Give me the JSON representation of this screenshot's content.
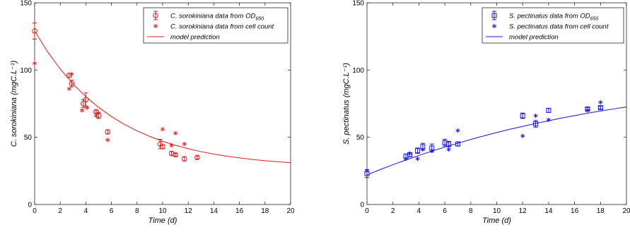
{
  "chart_data": [
    {
      "type": "scatter",
      "xlabel": "Time (d)",
      "ylabel": "C. sorokiniana (mgC.L⁻¹)",
      "xlim": [
        0,
        20
      ],
      "ylim": [
        0,
        150
      ],
      "xticks": [
        0,
        2,
        4,
        6,
        8,
        10,
        12,
        14,
        16,
        18,
        20
      ],
      "yticks": [
        0,
        50,
        100,
        150
      ],
      "grid": false,
      "legend_position": "top-right",
      "color": "#e41a1c",
      "series": [
        {
          "name": "C. sorokiniana data from OD",
          "name_subscript": "650",
          "marker": "circle-errorbar",
          "points": [
            {
              "x": 0.0,
              "y": 129,
              "err": 6
            },
            {
              "x": 2.7,
              "y": 96,
              "err": 1.5
            },
            {
              "x": 2.9,
              "y": 90,
              "err": 2.5
            },
            {
              "x": 3.8,
              "y": 75,
              "err": 3
            },
            {
              "x": 4.0,
              "y": 78,
              "err": 5
            },
            {
              "x": 4.8,
              "y": 69,
              "err": 1
            },
            {
              "x": 5.0,
              "y": 66,
              "err": 2
            },
            {
              "x": 5.7,
              "y": 54,
              "err": 1.5
            },
            {
              "x": 9.8,
              "y": 45,
              "err": 3.5
            },
            {
              "x": 10.0,
              "y": 43,
              "err": 1.5
            },
            {
              "x": 10.7,
              "y": 38,
              "err": 1.5
            },
            {
              "x": 11.0,
              "y": 37,
              "err": 1
            },
            {
              "x": 11.7,
              "y": 34,
              "err": 1.5
            },
            {
              "x": 12.7,
              "y": 35,
              "err": 1
            }
          ]
        },
        {
          "name": "C. sorokiniana data from cell count",
          "marker": "asterisk",
          "points": [
            {
              "x": 0.0,
              "y": 105
            },
            {
              "x": 2.7,
              "y": 86
            },
            {
              "x": 2.9,
              "y": 97
            },
            {
              "x": 3.7,
              "y": 70
            },
            {
              "x": 4.1,
              "y": 72
            },
            {
              "x": 4.8,
              "y": 66
            },
            {
              "x": 5.0,
              "y": 68
            },
            {
              "x": 5.7,
              "y": 48
            },
            {
              "x": 10.0,
              "y": 56
            },
            {
              "x": 10.7,
              "y": 44
            },
            {
              "x": 11.0,
              "y": 53
            },
            {
              "x": 11.7,
              "y": 45
            }
          ]
        },
        {
          "name": "model prediction",
          "marker": "line",
          "points": [
            {
              "x": 0,
              "y": 129
            },
            {
              "x": 1,
              "y": 113.7
            },
            {
              "x": 2,
              "y": 100.7
            },
            {
              "x": 3,
              "y": 89.6
            },
            {
              "x": 4,
              "y": 80.2
            },
            {
              "x": 5,
              "y": 72.2
            },
            {
              "x": 6,
              "y": 65.4
            },
            {
              "x": 7,
              "y": 59.6
            },
            {
              "x": 8,
              "y": 54.7
            },
            {
              "x": 9,
              "y": 50.6
            },
            {
              "x": 10,
              "y": 47.0
            },
            {
              "x": 11,
              "y": 44.0
            },
            {
              "x": 12,
              "y": 41.5
            },
            {
              "x": 13,
              "y": 39.3
            },
            {
              "x": 14,
              "y": 37.5
            },
            {
              "x": 15,
              "y": 36.0
            },
            {
              "x": 16,
              "y": 34.7
            },
            {
              "x": 17,
              "y": 33.5
            },
            {
              "x": 18,
              "y": 32.6
            },
            {
              "x": 19,
              "y": 31.8
            },
            {
              "x": 20,
              "y": 31.1
            }
          ]
        }
      ]
    },
    {
      "type": "scatter",
      "xlabel": "Time (d)",
      "ylabel": "S. pectinatus (mgC.L⁻¹)",
      "xlim": [
        0,
        20
      ],
      "ylim": [
        0,
        150
      ],
      "xticks": [
        0,
        2,
        4,
        6,
        8,
        10,
        12,
        14,
        16,
        18,
        20
      ],
      "yticks": [
        0,
        50,
        100,
        150
      ],
      "grid": false,
      "legend_position": "top-right",
      "color": "#1414e6",
      "series": [
        {
          "name": "S. pectinatus data from OD",
          "name_subscript": "650",
          "marker": "square-errorbar",
          "points": [
            {
              "x": 0.0,
              "y": 23,
              "err": 3
            },
            {
              "x": 3.0,
              "y": 36,
              "err": 1.5
            },
            {
              "x": 3.3,
              "y": 37,
              "err": 1.5
            },
            {
              "x": 3.9,
              "y": 40,
              "err": 2
            },
            {
              "x": 4.3,
              "y": 43,
              "err": 2.5
            },
            {
              "x": 5.0,
              "y": 42,
              "err": 3
            },
            {
              "x": 6.0,
              "y": 46,
              "err": 2.5
            },
            {
              "x": 6.3,
              "y": 45,
              "err": 2
            },
            {
              "x": 7.0,
              "y": 45,
              "err": 1.5
            },
            {
              "x": 12.0,
              "y": 66,
              "err": 2
            },
            {
              "x": 13.0,
              "y": 60,
              "err": 2.5
            },
            {
              "x": 14.0,
              "y": 70,
              "err": 1.5
            },
            {
              "x": 17.0,
              "y": 71,
              "err": 1
            },
            {
              "x": 18.0,
              "y": 72,
              "err": 1
            }
          ]
        },
        {
          "name": "S. pectinatus data from cell count",
          "marker": "asterisk",
          "points": [
            {
              "x": 0.0,
              "y": 25
            },
            {
              "x": 3.0,
              "y": 34
            },
            {
              "x": 3.3,
              "y": 38
            },
            {
              "x": 3.9,
              "y": 34
            },
            {
              "x": 4.3,
              "y": 41
            },
            {
              "x": 5.0,
              "y": 40
            },
            {
              "x": 6.3,
              "y": 41
            },
            {
              "x": 7.0,
              "y": 55
            },
            {
              "x": 12.0,
              "y": 51
            },
            {
              "x": 13.0,
              "y": 66
            },
            {
              "x": 14.0,
              "y": 63
            },
            {
              "x": 17.0,
              "y": 70
            },
            {
              "x": 18.0,
              "y": 76
            }
          ]
        },
        {
          "name": "model prediction",
          "marker": "line",
          "points": [
            {
              "x": 0,
              "y": 22
            },
            {
              "x": 1,
              "y": 25.9
            },
            {
              "x": 2,
              "y": 29.6
            },
            {
              "x": 3,
              "y": 33.1
            },
            {
              "x": 4,
              "y": 36.5
            },
            {
              "x": 5,
              "y": 39.7
            },
            {
              "x": 6,
              "y": 42.7
            },
            {
              "x": 7,
              "y": 45.6
            },
            {
              "x": 8,
              "y": 48.4
            },
            {
              "x": 9,
              "y": 51.0
            },
            {
              "x": 10,
              "y": 53.5
            },
            {
              "x": 11,
              "y": 55.9
            },
            {
              "x": 12,
              "y": 58.1
            },
            {
              "x": 13,
              "y": 60.3
            },
            {
              "x": 14,
              "y": 62.3
            },
            {
              "x": 15,
              "y": 64.3
            },
            {
              "x": 16,
              "y": 66.1
            },
            {
              "x": 17,
              "y": 67.9
            },
            {
              "x": 18,
              "y": 69.5
            },
            {
              "x": 19,
              "y": 71.1
            },
            {
              "x": 20,
              "y": 72.6
            }
          ]
        }
      ]
    }
  ]
}
